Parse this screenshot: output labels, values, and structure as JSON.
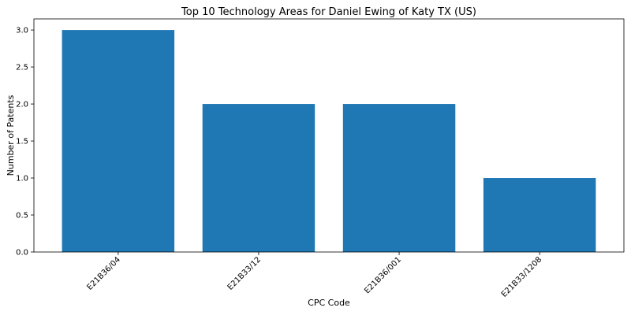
{
  "chart_data": {
    "type": "bar",
    "title": "Top 10 Technology Areas for Daniel Ewing of Katy TX (US)",
    "xlabel": "CPC Code",
    "ylabel": "Number of Patents",
    "categories": [
      "E21B36/04",
      "E21B33/12",
      "E21B36/001",
      "E21B33/1208"
    ],
    "values": [
      3,
      2,
      2,
      1
    ],
    "ylim": [
      0,
      3.15
    ],
    "yticks": [
      0.0,
      0.5,
      1.0,
      1.5,
      2.0,
      2.5,
      3.0
    ],
    "ytick_labels": [
      "0.0",
      "0.5",
      "1.0",
      "1.5",
      "2.0",
      "2.5",
      "3.0"
    ],
    "grid": false,
    "bar_color": "#1f77b4"
  }
}
